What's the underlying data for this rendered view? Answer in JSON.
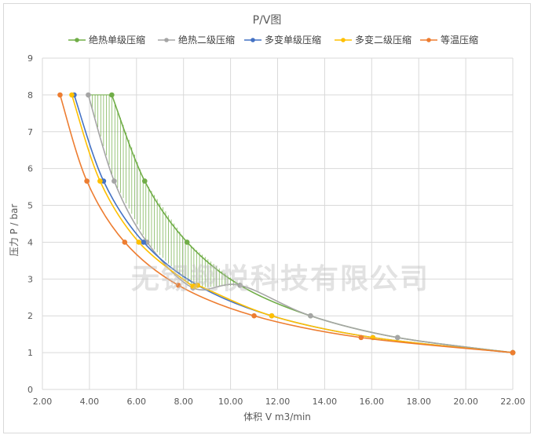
{
  "watermark": "无锡翔悦科技有限公司",
  "colors": {
    "green": "#70ad47",
    "gray": "#a5a5a5",
    "blue": "#4472c4",
    "yellow": "#ffc000",
    "orange": "#ed7d31",
    "grid": "#d9d9d9",
    "hatch": "#70ad47"
  },
  "chart_data": {
    "type": "scatter",
    "title": "P/V图",
    "xlabel": "体积 V m3/min",
    "ylabel": "压力 P / bar",
    "xlim": [
      2,
      22
    ],
    "ylim": [
      0,
      9
    ],
    "x_ticks": [
      "2.00",
      "4.00",
      "6.00",
      "8.00",
      "10.00",
      "12.00",
      "14.00",
      "16.00",
      "18.00",
      "20.00",
      "22.00"
    ],
    "y_ticks": [
      "0",
      "1",
      "2",
      "3",
      "4",
      "5",
      "6",
      "7",
      "8",
      "9"
    ],
    "legend_position": "top",
    "grid": true,
    "series": [
      {
        "name": "绝热单级压缩",
        "color_key": "green",
        "points": [
          [
            22,
            1
          ],
          [
            17.1,
            1.41
          ],
          [
            13.4,
            2
          ],
          [
            10.4,
            2.83
          ],
          [
            8.15,
            4
          ],
          [
            6.35,
            5.66
          ],
          [
            4.95,
            8
          ]
        ]
      },
      {
        "name": "绝热二级压缩",
        "color_key": "gray",
        "points": [
          [
            22,
            1
          ],
          [
            17.1,
            1.41
          ],
          [
            13.4,
            2
          ],
          [
            10.4,
            2.83
          ],
          [
            8.4,
            2.76
          ],
          [
            6.45,
            4
          ],
          [
            5.05,
            5.66
          ],
          [
            3.95,
            8
          ]
        ]
      },
      {
        "name": "多变单级压缩",
        "color_key": "blue",
        "points": [
          [
            22,
            1
          ],
          [
            16.05,
            1.41
          ],
          [
            11.75,
            2
          ],
          [
            8.6,
            2.83
          ],
          [
            6.3,
            4
          ],
          [
            4.6,
            5.66
          ],
          [
            3.35,
            8
          ]
        ]
      },
      {
        "name": "多变二级压缩",
        "color_key": "yellow",
        "points": [
          [
            22,
            1
          ],
          [
            16.05,
            1.41
          ],
          [
            11.75,
            2
          ],
          [
            8.6,
            2.83
          ],
          [
            8.4,
            2.8
          ],
          [
            6.1,
            4
          ],
          [
            4.45,
            5.66
          ],
          [
            3.25,
            8
          ]
        ]
      },
      {
        "name": "等温压缩",
        "color_key": "orange",
        "points": [
          [
            22,
            1
          ],
          [
            15.55,
            1.41
          ],
          [
            11,
            2
          ],
          [
            7.78,
            2.83
          ],
          [
            5.5,
            4
          ],
          [
            3.89,
            5.66
          ],
          [
            2.75,
            8
          ]
        ]
      }
    ]
  }
}
